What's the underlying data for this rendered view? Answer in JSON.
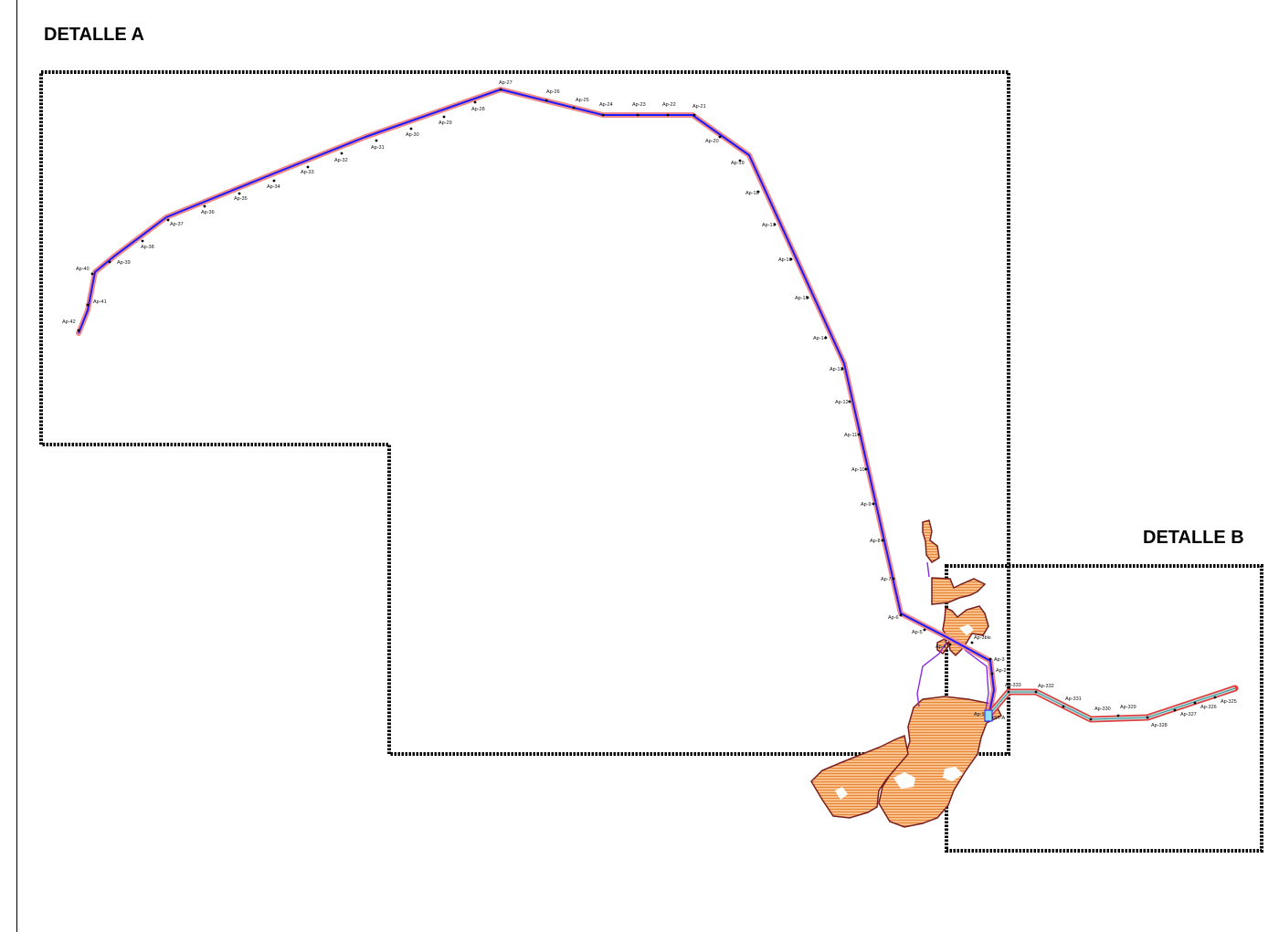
{
  "details": {
    "a": {
      "title": "DETALLE A"
    },
    "b": {
      "title": "DETALLE B"
    }
  },
  "route_a": {
    "stroke_color": "#1a1aff",
    "buffer_color": "#f08a8a",
    "tower_labels": [
      "Ap-42",
      "Ap-41",
      "Ap-40",
      "Ap-39",
      "Ap-38",
      "Ap-37",
      "Ap-36",
      "Ap-35",
      "Ap-34",
      "Ap-33",
      "Ap-32",
      "Ap-31",
      "Ap-30",
      "Ap-29",
      "Ap-28",
      "Ap-27",
      "Ap-26",
      "Ap-25",
      "Ap-24",
      "Ap-23",
      "Ap-22",
      "Ap-21",
      "Ap-20",
      "Ap-19",
      "Ap-18",
      "Ap-17",
      "Ap-16",
      "Ap-15",
      "Ap-14",
      "Ap-13",
      "Ap-12",
      "Ap-11",
      "Ap-10",
      "Ap-9",
      "Ap-8",
      "Ap-7",
      "Ap-6",
      "Ap-5",
      "Ap-4",
      "Ap-3",
      "Ap-2",
      "Ap-1",
      "Ap-3bis"
    ]
  },
  "route_b": {
    "stroke_color": "#3a8f8f",
    "buffer_color": "#e04040",
    "tower_labels": [
      "Ap-333",
      "Ap-332",
      "Ap-331",
      "Ap-330",
      "Ap-329",
      "Ap-328",
      "Ap-327",
      "Ap-326",
      "Ap-325",
      "ST-A"
    ]
  },
  "legend_colors": {
    "land_fill": "#f2a45c",
    "land_outline": "#7a1f1f",
    "connector": "#8a2be2",
    "detail_frame": "#000000"
  }
}
